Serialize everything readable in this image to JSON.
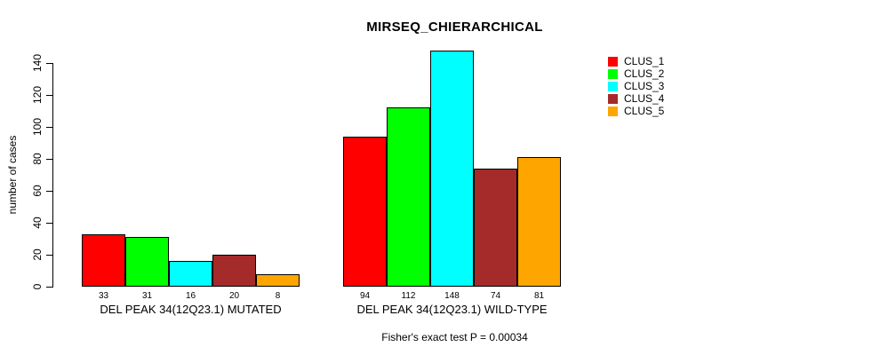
{
  "chart_data": {
    "type": "bar",
    "title": "MIRSEQ_CHIERARCHICAL",
    "ylabel": "number of cases",
    "xlabel": "",
    "footnote": "Fisher's exact test P = 0.00034",
    "ylim": [
      0,
      140
    ],
    "yticks": [
      0,
      20,
      40,
      60,
      80,
      100,
      120,
      140
    ],
    "grid": false,
    "legend_position": "top-right",
    "series": [
      {
        "name": "CLUS_1",
        "color": "#FF0000"
      },
      {
        "name": "CLUS_2",
        "color": "#00FF00"
      },
      {
        "name": "CLUS_3",
        "color": "#00FFFF"
      },
      {
        "name": "CLUS_4",
        "color": "#A52A2A"
      },
      {
        "name": "CLUS_5",
        "color": "#FFA500"
      }
    ],
    "categories": [
      "DEL PEAK 34(12Q23.1) MUTATED",
      "DEL PEAK 34(12Q23.1) WILD-TYPE"
    ],
    "groups": [
      {
        "label": "DEL PEAK 34(12Q23.1) MUTATED",
        "values": [
          33,
          31,
          16,
          20,
          8
        ]
      },
      {
        "label": "DEL PEAK 34(12Q23.1) WILD-TYPE",
        "values": [
          94,
          112,
          148,
          74,
          81
        ]
      }
    ]
  }
}
